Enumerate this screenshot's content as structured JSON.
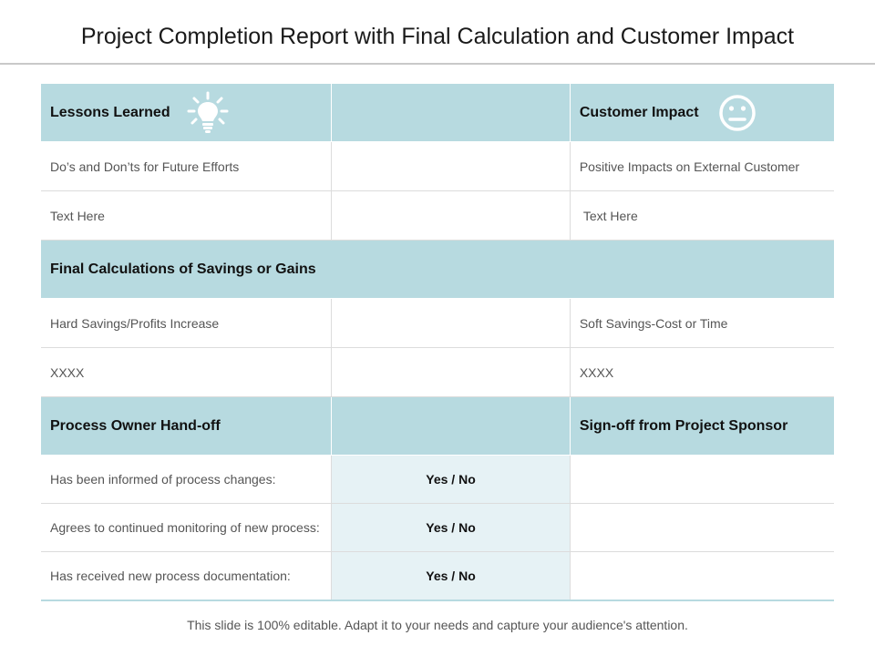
{
  "title": "Project Completion Report with Final Calculation and Customer Impact",
  "sections": {
    "lessons": {
      "header_left": "Lessons Learned",
      "header_right": "Customer Impact",
      "left_icon": "lightbulb-icon",
      "right_icon": "neutral-face-icon",
      "rows": [
        {
          "left": "Do’s and Don’ts for Future Efforts",
          "right": "Positive Impacts on External Customer"
        },
        {
          "left": "Text Here",
          "right": "Text Here"
        }
      ]
    },
    "calculations": {
      "header": "Final Calculations of Savings or Gains",
      "rows": [
        {
          "left": "Hard Savings/Profits Increase",
          "right": "Soft Savings-Cost or Time"
        },
        {
          "left": "XXXX",
          "right": "XXXX"
        }
      ]
    },
    "handoff": {
      "header_left": "Process Owner Hand-off",
      "header_right": "Sign-off from Project Sponsor",
      "rows": [
        {
          "label": "Has been informed of process changes:",
          "answer": "Yes / No"
        },
        {
          "label": "Agrees to continued monitoring of new process:",
          "answer": "Yes / No"
        },
        {
          "label": "Has received new process documentation:",
          "answer": "Yes / No"
        }
      ]
    }
  },
  "colors": {
    "header_bg": "#b7dae0",
    "answer_bg": "#e6f2f5"
  },
  "footer": "This slide is 100% editable. Adapt it to your needs and capture your audience's attention."
}
